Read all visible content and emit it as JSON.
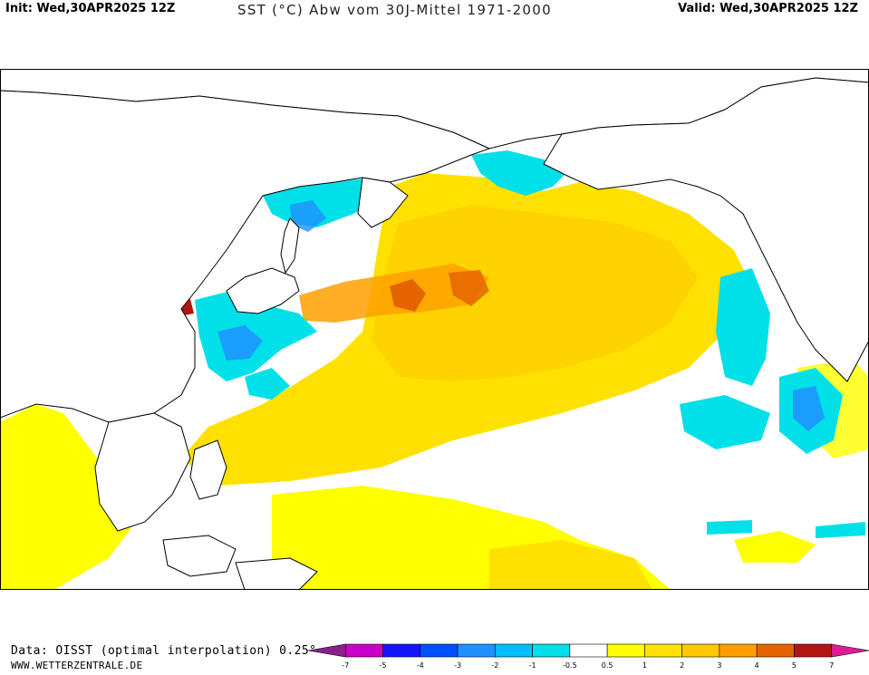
{
  "header": {
    "init": "Init: Wed,30APR2025 12Z",
    "title": "SST (°C) Abw vom 30J-Mittel 1971-2000",
    "valid": "Valid: Wed,30APR2025 12Z"
  },
  "footer": {
    "source": "Data: OISST (optimal interpolation) 0.25°",
    "site": "WWW.WETTERZENTRALE.DE"
  },
  "colorbar": {
    "ticks": [
      "-7",
      "-5",
      "-4",
      "-3",
      "-2",
      "-1",
      "-0.5",
      "0.5",
      "1",
      "2",
      "3",
      "4",
      "5",
      "7"
    ],
    "colors": [
      "#8a1f8a",
      "#c800c8",
      "#1414ff",
      "#0050ff",
      "#1e90ff",
      "#00bfff",
      "#00e0e8",
      "#ffffff",
      "#ffff00",
      "#ffe100",
      "#ffc800",
      "#ffa000",
      "#e66400",
      "#b41414",
      "#dc1e96"
    ]
  },
  "map": {
    "land_color": "#ffffff",
    "coastline_color": "#000000"
  }
}
